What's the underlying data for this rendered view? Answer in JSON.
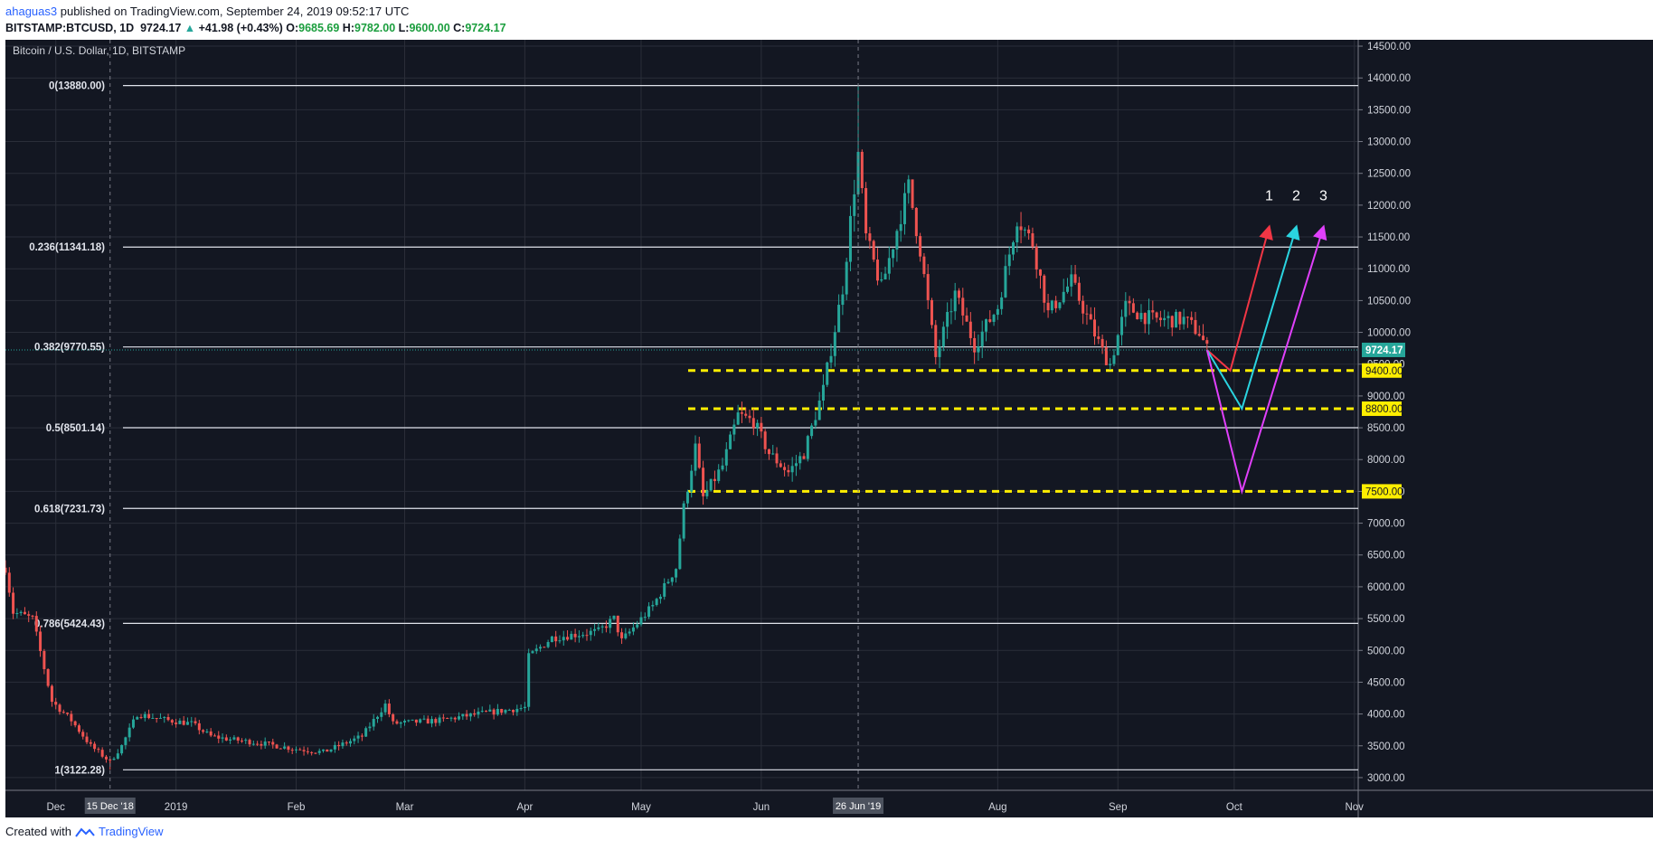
{
  "header": {
    "author": "ahaguas3",
    "published": " published on TradingView.com, September 24, 2019 09:52:17 UTC",
    "symbol": "BITSTAMP:BTCUSD, 1D",
    "last": "9724.17",
    "change": "+41.98 (+0.43%)",
    "o_label": "O:",
    "o": "9685.69",
    "h_label": "H:",
    "h": "9782.00",
    "l_label": "L:",
    "l": "9600.00",
    "c_label": "C:",
    "c": "9724.17"
  },
  "footer": {
    "created": "Created with",
    "brand": "TradingView"
  },
  "chart_data": {
    "type": "candlestick",
    "title": "Bitcoin / U.S. Dollar, 1D, BITSTAMP",
    "ylim": [
      2800,
      14600
    ],
    "y_ticks": [
      3000,
      3500,
      4000,
      4500,
      5000,
      5500,
      6000,
      6500,
      7000,
      7500,
      8000,
      8500,
      9000,
      9500,
      10000,
      10500,
      11000,
      11500,
      12000,
      12500,
      13000,
      13500,
      14000,
      14500
    ],
    "y_tick_labels": [
      "3000.00",
      "3500.00",
      "4000.00",
      "4500.00",
      "5000.00",
      "5500.00",
      "6000.00",
      "6500.00",
      "7000.00",
      "7500.00",
      "8000.00",
      "8500.00",
      "9000.00",
      "9500.00",
      "10000.00",
      "10500.00",
      "11000.00",
      "11500.00",
      "12000.00",
      "12500.00",
      "13000.00",
      "13500.00",
      "14000.00",
      "14500.00"
    ],
    "x_range": [
      "2018-11-18",
      "2019-11-02"
    ],
    "x_ticks": [
      {
        "date": "2018-12-01",
        "label": "Dec"
      },
      {
        "date": "2019-01-01",
        "label": "2019"
      },
      {
        "date": "2019-02-01",
        "label": "Feb"
      },
      {
        "date": "2019-03-01",
        "label": "Mar"
      },
      {
        "date": "2019-04-01",
        "label": "Apr"
      },
      {
        "date": "2019-05-01",
        "label": "May"
      },
      {
        "date": "2019-06-01",
        "label": "Jun"
      },
      {
        "date": "2019-08-01",
        "label": "Aug"
      },
      {
        "date": "2019-09-01",
        "label": "Sep"
      },
      {
        "date": "2019-10-01",
        "label": "Oct"
      },
      {
        "date": "2019-11-01",
        "label": "Nov"
      }
    ],
    "crosshair_dates": [
      {
        "date": "2018-12-15",
        "label": "15 Dec '18"
      },
      {
        "date": "2019-06-26",
        "label": "26 Jun '19"
      }
    ],
    "fib_levels": [
      {
        "label": "0(13880.00)",
        "value": 13880
      },
      {
        "label": "0.236(11341.18)",
        "value": 11341.18
      },
      {
        "label": "0.382(9770.55)",
        "value": 9770.55
      },
      {
        "label": "0.5(8501.14)",
        "value": 8501.14
      },
      {
        "label": "0.618(7231.73)",
        "value": 7231.73
      },
      {
        "label": "0.786(5424.43)",
        "value": 5424.43
      },
      {
        "label": "1(3122.28)",
        "value": 3122.28
      }
    ],
    "support_levels": [
      {
        "value": 9400,
        "label": "9400.00"
      },
      {
        "value": 8800,
        "label": "8800.00"
      },
      {
        "value": 7500,
        "label": "7500.00"
      }
    ],
    "last_price": {
      "value": 9724.17,
      "label": "9724.17"
    },
    "price_path": [
      [
        "2018-11-18",
        6300
      ],
      [
        "2018-11-20",
        5600
      ],
      [
        "2018-11-25",
        5500
      ],
      [
        "2018-11-30",
        4200
      ],
      [
        "2018-12-05",
        3900
      ],
      [
        "2018-12-10",
        3500
      ],
      [
        "2018-12-15",
        3250
      ],
      [
        "2018-12-18",
        3500
      ],
      [
        "2018-12-22",
        4000
      ],
      [
        "2018-12-30",
        3900
      ],
      [
        "2019-01-05",
        3850
      ],
      [
        "2019-01-10",
        3650
      ],
      [
        "2019-01-15",
        3600
      ],
      [
        "2019-01-22",
        3550
      ],
      [
        "2019-02-01",
        3450
      ],
      [
        "2019-02-08",
        3400
      ],
      [
        "2019-02-18",
        3650
      ],
      [
        "2019-02-24",
        4150
      ],
      [
        "2019-02-26",
        3850
      ],
      [
        "2019-03-10",
        3900
      ],
      [
        "2019-03-20",
        4000
      ],
      [
        "2019-04-01",
        4100
      ],
      [
        "2019-04-02",
        4900
      ],
      [
        "2019-04-08",
        5200
      ],
      [
        "2019-04-20",
        5300
      ],
      [
        "2019-04-24",
        5500
      ],
      [
        "2019-04-26",
        5150
      ],
      [
        "2019-05-04",
        5700
      ],
      [
        "2019-05-10",
        6300
      ],
      [
        "2019-05-12",
        7250
      ],
      [
        "2019-05-15",
        8200
      ],
      [
        "2019-05-17",
        7400
      ],
      [
        "2019-05-22",
        7900
      ],
      [
        "2019-05-26",
        8700
      ],
      [
        "2019-05-30",
        8600
      ],
      [
        "2019-06-03",
        8100
      ],
      [
        "2019-06-08",
        7800
      ],
      [
        "2019-06-12",
        8100
      ],
      [
        "2019-06-17",
        9100
      ],
      [
        "2019-06-22",
        10700
      ],
      [
        "2019-06-26",
        12800
      ],
      [
        "2019-06-28",
        11500
      ],
      [
        "2019-07-02",
        10700
      ],
      [
        "2019-07-09",
        12300
      ],
      [
        "2019-07-12",
        11300
      ],
      [
        "2019-07-16",
        9600
      ],
      [
        "2019-07-21",
        10600
      ],
      [
        "2019-07-26",
        9800
      ],
      [
        "2019-08-01",
        10400
      ],
      [
        "2019-08-06",
        11800
      ],
      [
        "2019-08-10",
        11400
      ],
      [
        "2019-08-14",
        10300
      ],
      [
        "2019-08-20",
        10800
      ],
      [
        "2019-08-28",
        9700
      ],
      [
        "2019-08-30",
        9500
      ],
      [
        "2019-09-03",
        10400
      ],
      [
        "2019-09-10",
        10200
      ],
      [
        "2019-09-18",
        10200
      ],
      [
        "2019-09-22",
        10000
      ],
      [
        "2019-09-24",
        9724
      ]
    ],
    "scenarios": [
      {
        "label": "1",
        "color": "#f23645",
        "points": [
          [
            "2019-09-24",
            9724
          ],
          [
            "2019-09-30",
            9400
          ],
          [
            "2019-10-10",
            11650
          ]
        ]
      },
      {
        "label": "2",
        "color": "#2ad4e0",
        "points": [
          [
            "2019-09-24",
            9724
          ],
          [
            "2019-10-03",
            8800
          ],
          [
            "2019-10-17",
            11650
          ]
        ]
      },
      {
        "label": "3",
        "color": "#e040fb",
        "points": [
          [
            "2019-09-24",
            9724
          ],
          [
            "2019-10-03",
            7500
          ],
          [
            "2019-10-24",
            11650
          ]
        ]
      }
    ]
  }
}
